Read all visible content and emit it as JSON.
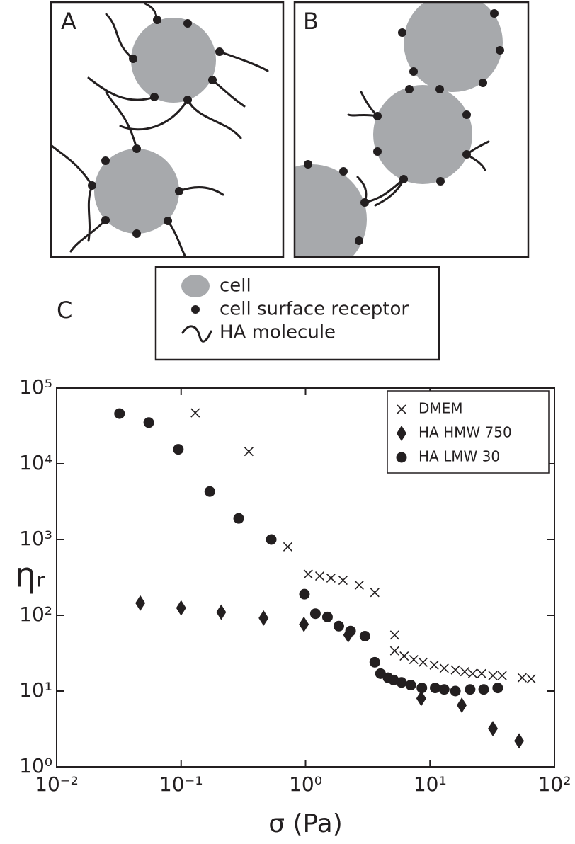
{
  "figure": {
    "panels": [
      "A",
      "B"
    ],
    "panel_c": "C",
    "key": [
      "cell",
      "cell surface receptor",
      "HA molecule"
    ]
  },
  "chart_data": {
    "type": "scatter",
    "log_x": true,
    "log_y": true,
    "legend": "upper right",
    "grid": false,
    "xlabel": "σ (Pa)",
    "ylabel": "ηᵣ",
    "xlim": [
      0.01,
      100
    ],
    "ylim": [
      1,
      100000
    ],
    "xticks": [
      {
        "value": 0.01,
        "label": "10⁻²"
      },
      {
        "value": 0.1,
        "label": "10⁻¹"
      },
      {
        "value": 1,
        "label": "10⁰"
      },
      {
        "value": 10,
        "label": "10¹"
      },
      {
        "value": 100,
        "label": "10²"
      }
    ],
    "yticks": [
      {
        "value": 1,
        "label": "10⁰"
      },
      {
        "value": 10,
        "label": "10¹"
      },
      {
        "value": 100,
        "label": "10²"
      },
      {
        "value": 1000,
        "label": "10³"
      },
      {
        "value": 10000,
        "label": "10⁴"
      },
      {
        "value": 100000,
        "label": "10⁵"
      }
    ],
    "series": [
      {
        "name": "DMEM",
        "marker": "x",
        "color": "#231f20",
        "x": [
          0.13,
          0.35,
          0.72,
          1.05,
          1.3,
          1.6,
          2.0,
          2.7,
          3.6,
          5.2,
          5.2,
          6.2,
          7.4,
          8.8,
          10.8,
          13,
          16,
          19,
          22,
          26,
          32,
          38,
          55,
          65
        ],
        "values": [
          47000,
          14500,
          800,
          350,
          330,
          310,
          290,
          250,
          200,
          55,
          34,
          29,
          26,
          24,
          22,
          20,
          19,
          18,
          17,
          17,
          16,
          16,
          15,
          14.5
        ]
      },
      {
        "name": "HA HMW 750",
        "marker": "diamond",
        "color": "#231f20",
        "x": [
          0.047,
          0.1,
          0.21,
          0.46,
          0.97,
          2.2,
          8.5,
          18,
          32,
          52
        ],
        "values": [
          145,
          125,
          110,
          92,
          76,
          55,
          8,
          6.5,
          3.2,
          2.2
        ]
      },
      {
        "name": "HA LMW 30",
        "marker": "circle",
        "color": "#231f20",
        "x": [
          0.032,
          0.055,
          0.095,
          0.17,
          0.29,
          0.53,
          0.98,
          1.2,
          1.5,
          1.85,
          2.3,
          3.0,
          3.6,
          4.0,
          4.6,
          5.1,
          5.9,
          7.0,
          8.6,
          11,
          13,
          16,
          21,
          27,
          35
        ],
        "values": [
          46000,
          35000,
          15500,
          4300,
          1900,
          1000,
          190,
          105,
          95,
          72,
          62,
          53,
          24,
          17,
          15,
          14,
          13,
          12,
          11,
          11,
          10.5,
          10,
          10.5,
          10.5,
          11
        ]
      }
    ]
  }
}
